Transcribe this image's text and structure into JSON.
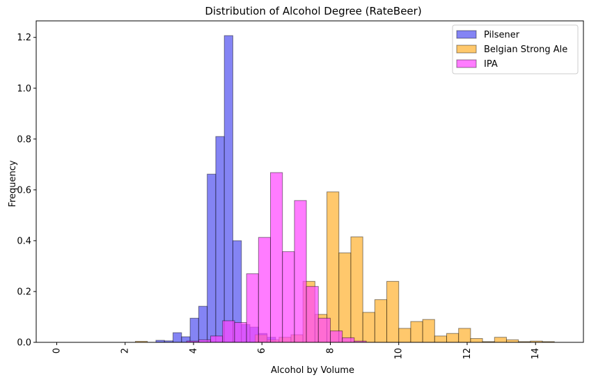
{
  "chart_data": {
    "type": "bar",
    "subtype": "overlaid-histogram",
    "title": "Distribution of Alcohol Degree (RateBeer)",
    "xlabel": "Alcohol by Volume",
    "ylabel": "Frequency",
    "xlim": [
      -0.6,
      15.4
    ],
    "ylim": [
      0,
      1.265
    ],
    "xticks": [
      0,
      2,
      4,
      6,
      8,
      10,
      12,
      14
    ],
    "yticks": [
      0.0,
      0.2,
      0.4,
      0.6,
      0.8,
      1.0,
      1.2
    ],
    "xtick_rotation": 90,
    "grid": false,
    "legend_position": "top-right",
    "series": [
      {
        "name": "Pilsener",
        "color": "#5050f0",
        "bins": [
          [
            2.9,
            3.15,
            0.008
          ],
          [
            3.15,
            3.4,
            0.006
          ],
          [
            3.4,
            3.65,
            0.038
          ],
          [
            3.65,
            3.9,
            0.022
          ],
          [
            3.9,
            4.15,
            0.095
          ],
          [
            4.15,
            4.4,
            0.142
          ],
          [
            4.4,
            4.65,
            0.662
          ],
          [
            4.65,
            4.9,
            0.81
          ],
          [
            4.9,
            5.15,
            1.207
          ],
          [
            5.15,
            5.4,
            0.4
          ],
          [
            5.4,
            5.65,
            0.07
          ],
          [
            5.65,
            5.9,
            0.06
          ],
          [
            5.9,
            6.15,
            0.035
          ],
          [
            6.15,
            6.4,
            0.02
          ]
        ]
      },
      {
        "name": "Belgian Strong Ale",
        "color": "#ffb02e",
        "bins": [
          [
            2.3,
            2.65,
            0.004
          ],
          [
            5.8,
            6.15,
            0.03
          ],
          [
            6.15,
            6.5,
            0.01
          ],
          [
            6.5,
            6.85,
            0.02
          ],
          [
            6.85,
            7.2,
            0.03
          ],
          [
            7.2,
            7.55,
            0.24
          ],
          [
            7.55,
            7.9,
            0.11
          ],
          [
            7.9,
            8.25,
            0.592
          ],
          [
            8.25,
            8.6,
            0.352
          ],
          [
            8.6,
            8.95,
            0.415
          ],
          [
            8.95,
            9.3,
            0.118
          ],
          [
            9.3,
            9.65,
            0.168
          ],
          [
            9.65,
            10.0,
            0.24
          ],
          [
            10.0,
            10.35,
            0.055
          ],
          [
            10.35,
            10.7,
            0.082
          ],
          [
            10.7,
            11.05,
            0.09
          ],
          [
            11.05,
            11.4,
            0.025
          ],
          [
            11.4,
            11.75,
            0.035
          ],
          [
            11.75,
            12.1,
            0.055
          ],
          [
            12.1,
            12.45,
            0.015
          ],
          [
            12.45,
            12.8,
            0.003
          ],
          [
            12.8,
            13.15,
            0.02
          ],
          [
            13.15,
            13.5,
            0.01
          ],
          [
            13.5,
            13.85,
            0.003
          ],
          [
            13.85,
            14.2,
            0.005
          ],
          [
            14.2,
            14.55,
            0.003
          ]
        ]
      },
      {
        "name": "IPA",
        "color": "#ff44ff",
        "bins": [
          [
            3.8,
            4.15,
            0.005
          ],
          [
            4.15,
            4.5,
            0.01
          ],
          [
            4.5,
            4.85,
            0.025
          ],
          [
            4.85,
            5.2,
            0.085
          ],
          [
            5.2,
            5.55,
            0.078
          ],
          [
            5.55,
            5.9,
            0.27
          ],
          [
            5.9,
            6.25,
            0.413
          ],
          [
            6.25,
            6.6,
            0.668
          ],
          [
            6.6,
            6.95,
            0.357
          ],
          [
            6.95,
            7.3,
            0.558
          ],
          [
            7.3,
            7.65,
            0.22
          ],
          [
            7.65,
            8.0,
            0.095
          ],
          [
            8.0,
            8.35,
            0.045
          ],
          [
            8.35,
            8.7,
            0.018
          ],
          [
            8.7,
            9.05,
            0.005
          ]
        ]
      }
    ]
  }
}
